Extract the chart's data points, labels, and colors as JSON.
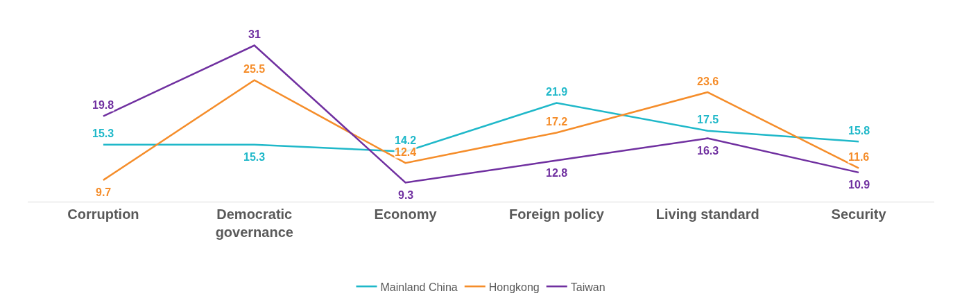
{
  "chart_data": {
    "type": "line",
    "categories": [
      "Corruption",
      "Democratic governance",
      "Economy",
      "Foreign policy",
      "Living standard",
      "Security"
    ],
    "series": [
      {
        "name": "Mainland China",
        "color": "#1fb8c9",
        "values": [
          15.3,
          15.3,
          14.2,
          21.9,
          17.5,
          15.8
        ]
      },
      {
        "name": "Hongkong",
        "color": "#f58d2a",
        "values": [
          9.7,
          25.5,
          12.4,
          17.2,
          23.6,
          11.6
        ]
      },
      {
        "name": "Taiwan",
        "color": "#7030a0",
        "values": [
          19.8,
          31,
          9.3,
          12.8,
          16.3,
          10.9
        ]
      }
    ],
    "data_labels": true,
    "legend": "bottom",
    "marker": "none",
    "line_style": "solid"
  }
}
